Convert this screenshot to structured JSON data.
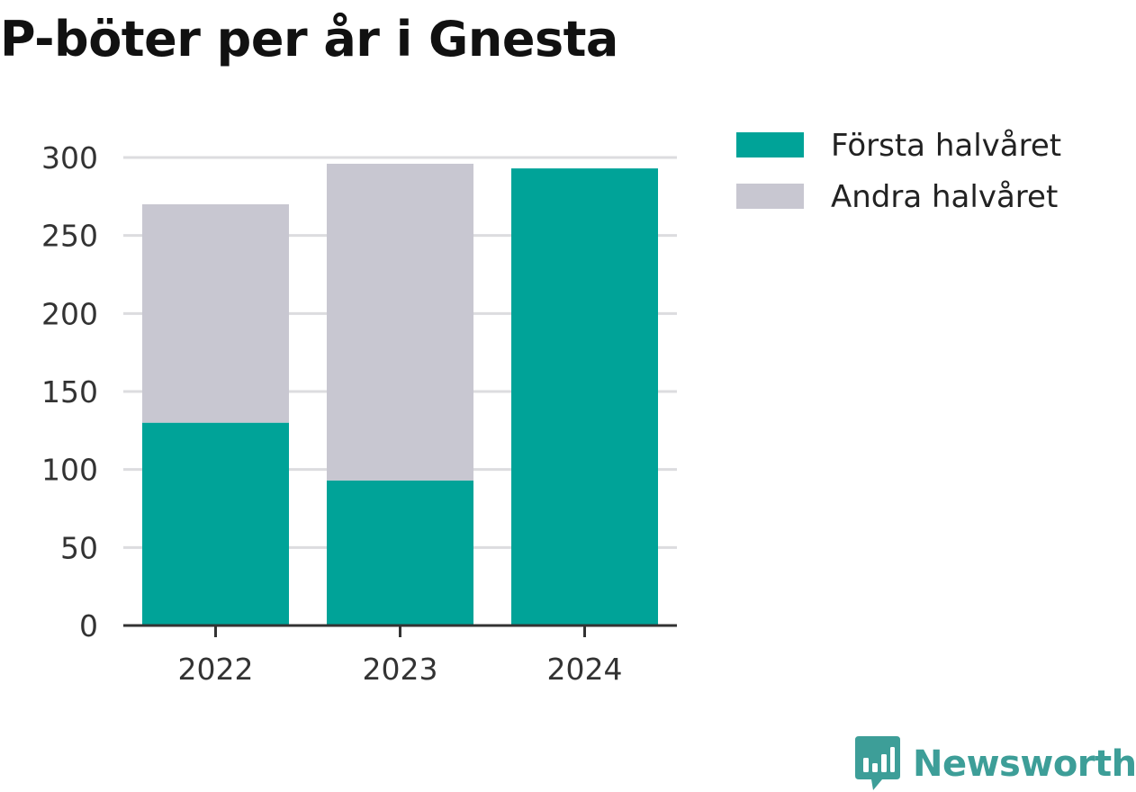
{
  "title": "P-böter per år i Gnesta",
  "brand": {
    "name": "Newsworthy",
    "icon": "newsworthy-logo-icon",
    "color": "#3d9e98"
  },
  "chart_data": {
    "type": "bar",
    "stacked": true,
    "title": "P-böter per år i Gnesta",
    "xlabel": "",
    "ylabel": "",
    "categories": [
      "2022",
      "2023",
      "2024"
    ],
    "series": [
      {
        "name": "Första halvåret",
        "color": "#00a398",
        "values": [
          130,
          93,
          293
        ]
      },
      {
        "name": "Andra halvåret",
        "color": "#c8c7d1",
        "values": [
          140,
          203,
          0
        ]
      }
    ],
    "ylim": [
      0,
      300
    ],
    "yticks": [
      0,
      50,
      100,
      150,
      200,
      250,
      300
    ],
    "grid": true,
    "legend": "right"
  }
}
